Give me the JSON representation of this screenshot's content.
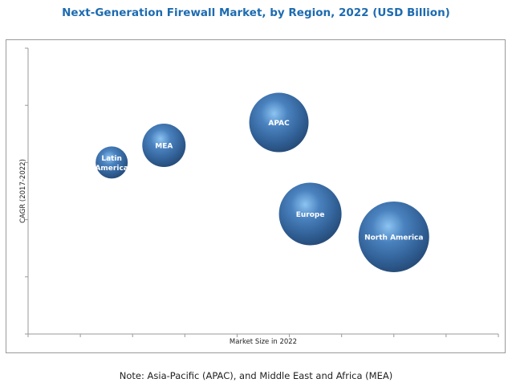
{
  "chart_data": {
    "type": "scatter",
    "subtype": "bubble",
    "title": "Next-Generation Firewall Market, by Region, 2022 (USD Billion)",
    "xlabel": "Market Size in 2022",
    "ylabel": "CAGR (2017-2022)",
    "xlim": [
      0,
      9
    ],
    "ylim": [
      0,
      5
    ],
    "x_ticks": 9,
    "y_ticks": 5,
    "tick_labels_shown": false,
    "grid": false,
    "legend": "none",
    "series": [
      {
        "name": "Latin America",
        "x": 1.6,
        "y": 3.0,
        "size": 20
      },
      {
        "name": "MEA",
        "x": 2.6,
        "y": 3.3,
        "size": 27
      },
      {
        "name": "APAC",
        "x": 4.8,
        "y": 3.7,
        "size": 37
      },
      {
        "name": "Europe",
        "x": 5.4,
        "y": 2.1,
        "size": 39
      },
      {
        "name": "North America",
        "x": 7.0,
        "y": 1.7,
        "size": 44
      }
    ],
    "bubble_color": "#3d6ea6",
    "title_color": "#1d6bb0"
  },
  "note": "Note: Asia-Pacific (APAC), and Middle East and Africa (MEA)"
}
